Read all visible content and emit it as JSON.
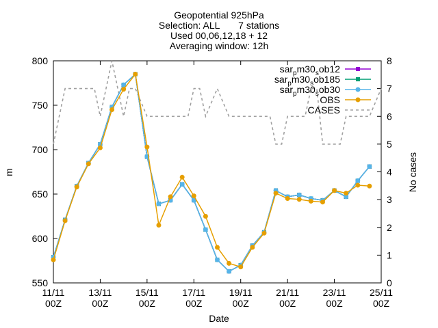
{
  "chart_data": {
    "type": "line",
    "title_lines": [
      "Geopotential 925hPa",
      "Selection: ALL       7 stations",
      "Used 00,06,12,18 + 12",
      "Averaging window: 12h"
    ],
    "xlabel": "Date",
    "ylabel": "m",
    "y2label": "No cases",
    "ylim": [
      550,
      800
    ],
    "y_ticks": [
      550,
      600,
      650,
      700,
      750,
      800
    ],
    "y2lim": [
      0,
      8
    ],
    "y2_ticks": [
      0,
      1,
      2,
      3,
      4,
      5,
      6,
      7,
      8
    ],
    "xlim": [
      0,
      14
    ],
    "x_ticks": [
      {
        "pos": 0,
        "line1": "11/11",
        "line2": "00Z"
      },
      {
        "pos": 2,
        "line1": "13/11",
        "line2": "00Z"
      },
      {
        "pos": 4,
        "line1": "15/11",
        "line2": "00Z"
      },
      {
        "pos": 6,
        "line1": "17/11",
        "line2": "00Z"
      },
      {
        "pos": 8,
        "line1": "19/11",
        "line2": "00Z"
      },
      {
        "pos": 10,
        "line1": "21/11",
        "line2": "00Z"
      },
      {
        "pos": 12,
        "line1": "23/11",
        "line2": "00Z"
      },
      {
        "pos": 14,
        "line1": "25/11",
        "line2": "00Z"
      }
    ],
    "legend_position": "top-right",
    "x": [
      0,
      0.5,
      1,
      1.5,
      2,
      2.5,
      3,
      3.5,
      4,
      4.5,
      5,
      5.5,
      6,
      6.5,
      7,
      7.5,
      8,
      8.5,
      9,
      9.5,
      10,
      10.5,
      11,
      11.5,
      12,
      12.5,
      13,
      13.5,
      14
    ],
    "series": [
      {
        "name_base": "sar",
        "name_sub": "p",
        "name_rest": "m30",
        "name_sub2": "s",
        "name_tail": "ob12",
        "color": "#9400d3",
        "marker": "square",
        "axis": "y1",
        "values": [
          579,
          621,
          659,
          685,
          706,
          748,
          773,
          785,
          692,
          639,
          643,
          661,
          643,
          610,
          576,
          563,
          570,
          592,
          607,
          654,
          647,
          649,
          645,
          643,
          654,
          647,
          665,
          681,
          null
        ]
      },
      {
        "name_base": "sar",
        "name_sub": "p",
        "name_rest": "m30",
        "name_sub2": "s",
        "name_tail": "ob185",
        "color": "#009e73",
        "marker": "square",
        "axis": "y1",
        "values": [
          579,
          621,
          659,
          685,
          706,
          748,
          773,
          785,
          692,
          639,
          643,
          661,
          643,
          610,
          576,
          563,
          570,
          592,
          607,
          654,
          647,
          649,
          645,
          643,
          654,
          647,
          665,
          681,
          null
        ]
      },
      {
        "name_base": "sar",
        "name_sub": "p",
        "name_rest": "m30",
        "name_sub2": "s",
        "name_tail": "ob30",
        "color": "#56b4e9",
        "marker": "circle",
        "axis": "y1",
        "values": [
          579,
          621,
          659,
          685,
          706,
          748,
          773,
          785,
          692,
          639,
          643,
          661,
          643,
          610,
          576,
          563,
          570,
          592,
          607,
          654,
          647,
          649,
          645,
          643,
          654,
          647,
          665,
          681,
          null
        ]
      },
      {
        "name": "OBS",
        "color": "#e69f00",
        "marker": "circle",
        "axis": "y1",
        "values": [
          576,
          620,
          658,
          684,
          702,
          745,
          768,
          785,
          703,
          615,
          647,
          669,
          648,
          625,
          590,
          572,
          568,
          590,
          606,
          651,
          645,
          644,
          642,
          641,
          654,
          651,
          660,
          659,
          null
        ]
      },
      {
        "name": "CASES",
        "color": "#a0a0a0",
        "dashed": true,
        "axis": "y2",
        "x": [
          0,
          0.5,
          1,
          1.5,
          1.75,
          2,
          2.5,
          2.75,
          3,
          3.25,
          3.5,
          4,
          4.25,
          4.5,
          5,
          5.5,
          5.75,
          6,
          6.25,
          6.5,
          7,
          7.5,
          7.75,
          8,
          8.5,
          9,
          9.25,
          9.5,
          9.75,
          10,
          10.5,
          10.75,
          11,
          11.25,
          11.5,
          12,
          12.25,
          12.5,
          13,
          13.25,
          13.5,
          14
        ],
        "values": [
          5,
          7,
          7,
          7,
          7,
          6,
          8,
          7,
          6,
          7,
          7,
          6,
          6,
          6,
          6,
          6,
          6,
          7,
          7,
          6,
          7,
          6,
          6,
          6,
          6,
          6,
          6,
          5,
          5,
          6,
          6,
          6,
          7,
          7,
          5,
          5,
          5,
          6,
          6,
          6,
          6,
          7
        ]
      }
    ]
  }
}
